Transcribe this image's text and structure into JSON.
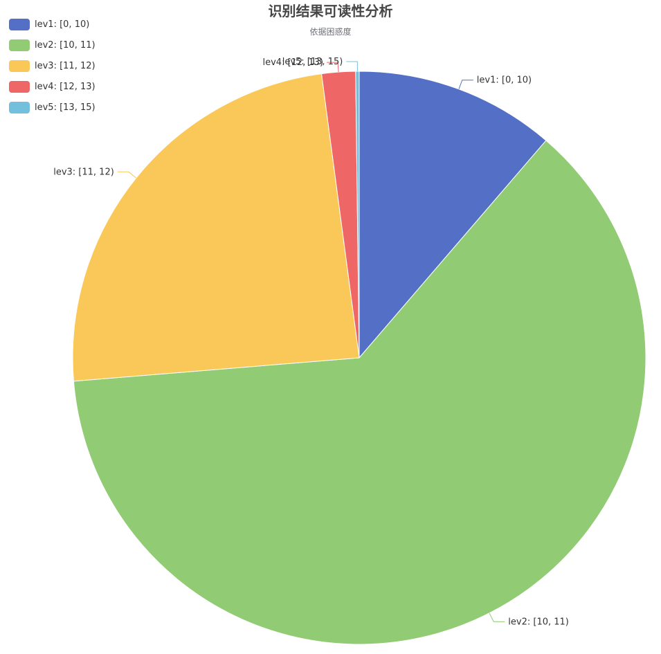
{
  "chart_data": {
    "type": "pie",
    "title": "识别结果可读性分析",
    "subtitle": "依据困惑度",
    "categories": [
      "lev1: [0, 10)",
      "lev2: [10, 11)",
      "lev3: [11, 12)",
      "lev4: [12, 13)",
      "lev5: [13, 15)"
    ],
    "values": [
      11.3,
      62.4,
      24.2,
      1.9,
      0.2
    ],
    "colors": [
      "#5470c6",
      "#91cc75",
      "#fac858",
      "#ee6666",
      "#73c0de"
    ],
    "legend_position": "top-left"
  }
}
